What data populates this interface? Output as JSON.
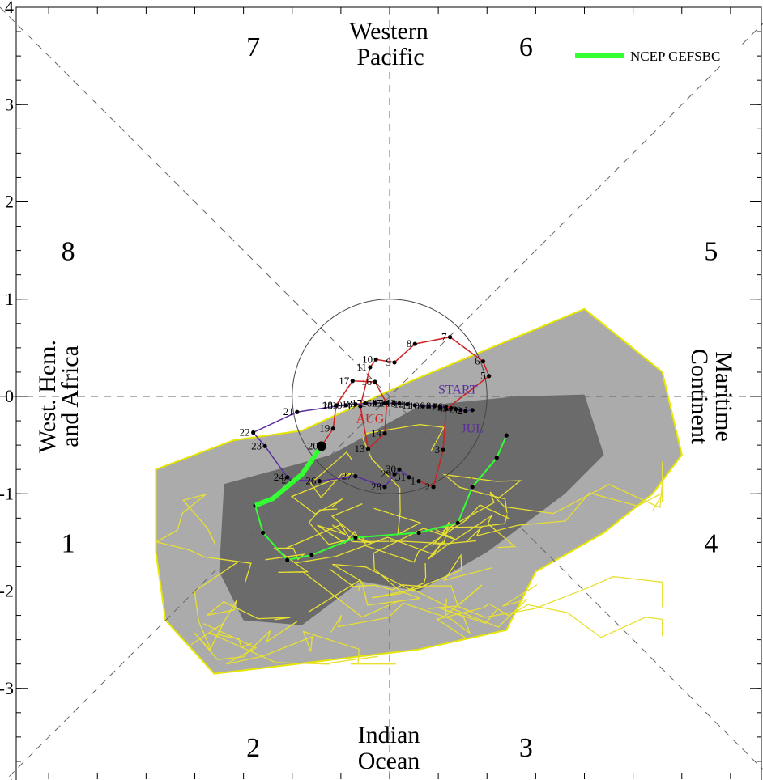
{
  "chart_data": {
    "type": "line",
    "title": "",
    "subtitle": "",
    "xlabel": "",
    "ylabel": "",
    "xlim": [
      -4,
      4
    ],
    "ylim": [
      -4,
      4
    ],
    "y_ticks": [
      "4",
      "3",
      "2",
      "1",
      "0",
      "-1",
      "-2",
      "-3",
      "-4"
    ],
    "phase_labels": [
      {
        "text": "1",
        "x": -3.3,
        "y": -1.5
      },
      {
        "text": "2",
        "x": -1.4,
        "y": -3.6
      },
      {
        "text": "3",
        "x": 1.4,
        "y": -3.6
      },
      {
        "text": "4",
        "x": 3.3,
        "y": -1.5
      },
      {
        "text": "5",
        "x": 3.3,
        "y": 1.5
      },
      {
        "text": "6",
        "x": 1.4,
        "y": 3.6
      },
      {
        "text": "7",
        "x": -1.4,
        "y": 3.6
      },
      {
        "text": "8",
        "x": -3.3,
        "y": 1.5
      }
    ],
    "region_labels": {
      "top": [
        "Western",
        "Pacific"
      ],
      "bottom": [
        "Indian",
        "Ocean"
      ],
      "left": [
        "West. Hem.",
        "and Africa"
      ],
      "right": [
        "Maritime",
        "Continent"
      ]
    },
    "legend": [
      {
        "name": "NCEP GEFSBC",
        "color": "#33ff33"
      }
    ],
    "legend_position": "top-right",
    "month_labels": [
      {
        "text": "START",
        "x": 0.7,
        "y": 0.03,
        "color": "#5a2ca0"
      },
      {
        "text": "JUL",
        "x": 0.85,
        "y": -0.37,
        "color": "#5a2ca0"
      },
      {
        "text": "AUG",
        "x": -0.2,
        "y": -0.27,
        "color": "#cc2222"
      }
    ],
    "series": [
      {
        "name": "July",
        "color": "#5a2ca0",
        "points": [
          {
            "d": "1",
            "x": 0.85,
            "y": -0.14
          },
          {
            "d": "2",
            "x": 0.78,
            "y": -0.15
          },
          {
            "d": "3",
            "x": 0.73,
            "y": -0.14
          },
          {
            "d": "4",
            "x": 0.68,
            "y": -0.13
          },
          {
            "d": "5",
            "x": 0.63,
            "y": -0.12
          },
          {
            "d": "6",
            "x": 0.58,
            "y": -0.11
          },
          {
            "d": "7",
            "x": 0.52,
            "y": -0.11
          },
          {
            "d": "8",
            "x": 0.46,
            "y": -0.1
          },
          {
            "d": "9",
            "x": 0.4,
            "y": -0.1
          },
          {
            "d": "10",
            "x": 0.34,
            "y": -0.1
          },
          {
            "d": "11",
            "x": 0.26,
            "y": -0.09
          },
          {
            "d": "12",
            "x": 0.18,
            "y": -0.08
          },
          {
            "d": "13",
            "x": 0.1,
            "y": -0.07
          },
          {
            "d": "14",
            "x": 0.04,
            "y": -0.07
          },
          {
            "d": "15",
            "x": -0.05,
            "y": -0.07
          },
          {
            "d": "16",
            "x": -0.15,
            "y": -0.07
          },
          {
            "d": "17",
            "x": -0.25,
            "y": -0.07
          },
          {
            "d": "18",
            "x": -0.35,
            "y": -0.08
          },
          {
            "d": "19",
            "x": -0.45,
            "y": -0.09
          },
          {
            "d": "20",
            "x": -0.55,
            "y": -0.1
          },
          {
            "d": "21",
            "x": -0.95,
            "y": -0.16
          },
          {
            "d": "22",
            "x": -1.4,
            "y": -0.37
          },
          {
            "d": "23",
            "x": -1.28,
            "y": -0.51
          },
          {
            "d": "24",
            "x": -1.05,
            "y": -0.83
          },
          {
            "d": "25",
            "x": -0.97,
            "y": -0.86
          },
          {
            "d": "26",
            "x": -0.72,
            "y": -0.87
          },
          {
            "d": "27",
            "x": -0.35,
            "y": -0.82
          },
          {
            "d": "28",
            "x": -0.05,
            "y": -0.93
          },
          {
            "d": "29",
            "x": 0.05,
            "y": -0.8
          },
          {
            "d": "30",
            "x": 0.1,
            "y": -0.75
          },
          {
            "d": "31",
            "x": 0.2,
            "y": -0.83
          }
        ]
      },
      {
        "name": "August",
        "color": "#cc2222",
        "points": [
          {
            "d": "1",
            "x": 0.3,
            "y": -0.87
          },
          {
            "d": "2",
            "x": 0.45,
            "y": -0.93
          },
          {
            "d": "3",
            "x": 0.55,
            "y": -0.55
          },
          {
            "d": "4",
            "x": 0.58,
            "y": -0.13
          },
          {
            "d": "5",
            "x": 1.02,
            "y": 0.21
          },
          {
            "d": "6",
            "x": 0.96,
            "y": 0.36
          },
          {
            "d": "7",
            "x": 0.62,
            "y": 0.61
          },
          {
            "d": "8",
            "x": 0.26,
            "y": 0.54
          },
          {
            "d": "9",
            "x": 0.05,
            "y": 0.35
          },
          {
            "d": "10",
            "x": -0.14,
            "y": 0.38
          },
          {
            "d": "11",
            "x": -0.2,
            "y": 0.3
          },
          {
            "d": "12",
            "x": -0.3,
            "y": -0.1
          },
          {
            "d": "13",
            "x": -0.22,
            "y": -0.54
          },
          {
            "d": "14",
            "x": -0.05,
            "y": -0.38
          },
          {
            "d": "15",
            "x": -0.03,
            "y": -0.07
          },
          {
            "d": "16",
            "x": -0.15,
            "y": 0.15
          },
          {
            "d": "17",
            "x": -0.38,
            "y": 0.16
          },
          {
            "d": "18",
            "x": -0.55,
            "y": -0.09
          },
          {
            "d": "19",
            "x": -0.58,
            "y": -0.33
          },
          {
            "d": "20",
            "x": -0.7,
            "y": -0.51
          }
        ]
      },
      {
        "name": "NCEP GEFSBC",
        "color": "#33ff33",
        "points": [
          {
            "x": -0.7,
            "y": -0.51
          },
          {
            "x": -0.9,
            "y": -0.8
          },
          {
            "x": -1.2,
            "y": -1.05
          },
          {
            "x": -1.38,
            "y": -1.12
          },
          {
            "x": -1.3,
            "y": -1.4
          },
          {
            "x": -1.05,
            "y": -1.68
          },
          {
            "x": -0.8,
            "y": -1.63
          },
          {
            "x": -0.35,
            "y": -1.45
          },
          {
            "x": 0.3,
            "y": -1.4
          },
          {
            "x": 0.7,
            "y": -1.3
          },
          {
            "x": 0.85,
            "y": -0.93
          },
          {
            "x": 1.1,
            "y": -0.63
          },
          {
            "x": 1.2,
            "y": -0.4
          }
        ]
      }
    ]
  }
}
